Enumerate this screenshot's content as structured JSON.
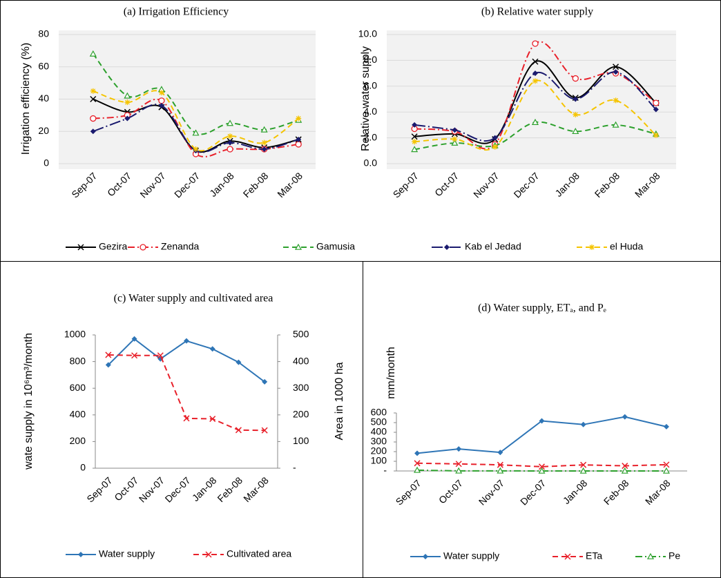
{
  "chart_data": [
    {
      "type": "line",
      "title": "(a)  Irrigation Efficiency",
      "y_label": "Irrigation efficiency (%)",
      "categories": [
        "Sep-07",
        "Oct-07",
        "Nov-07",
        "Dec-07",
        "Jan-08",
        "Feb-08",
        "Mar-08"
      ],
      "ylim": [
        0,
        80
      ],
      "yticks": [
        0,
        20,
        40,
        60,
        80
      ],
      "grid": true,
      "smooth": true,
      "series": [
        {
          "name": "Gezira",
          "color": "#000000",
          "marker": "x",
          "linestyle": "solid",
          "values": [
            40,
            32,
            35,
            8,
            14,
            10,
            15
          ]
        },
        {
          "name": "Zenanda",
          "color": "#e8202a",
          "marker": "o",
          "linestyle": "dashdot",
          "values": [
            28,
            30,
            39,
            6,
            9,
            9,
            12
          ]
        },
        {
          "name": "Gamusia",
          "color": "#2ca02c",
          "marker": "^",
          "linestyle": "dashed",
          "values": [
            68,
            42,
            46,
            19,
            25,
            21,
            27
          ]
        },
        {
          "name": "Kab el Jedad",
          "color": "#1a1a6e",
          "marker": "D",
          "linestyle": "longdashdot",
          "values": [
            20,
            28,
            36,
            8,
            13,
            9,
            15
          ]
        },
        {
          "name": "el Huda",
          "color": "#f5c400",
          "marker": "*",
          "linestyle": "dashed",
          "values": [
            45,
            38,
            44,
            9,
            17,
            13,
            28
          ]
        }
      ]
    },
    {
      "type": "line",
      "title": "(b)  Relative water supply",
      "y_label": "Relative water supply",
      "categories": [
        "Sep-07",
        "Oct-07",
        "Nov-07",
        "Dec-07",
        "Jan-08",
        "Feb-08",
        "Mar-08"
      ],
      "ylim": [
        0,
        10
      ],
      "yticks": [
        {
          "value": 0,
          "label": "0.0"
        },
        {
          "value": 2,
          "label": "2.0"
        },
        {
          "value": 4,
          "label": "4.0"
        },
        {
          "value": 6,
          "label": "6.0"
        },
        {
          "value": 8,
          "label": "8.0"
        },
        {
          "value": 10,
          "label": "10.0"
        }
      ],
      "grid": true,
      "smooth": true,
      "series": [
        {
          "color": "#000000",
          "marker": "x",
          "linestyle": "solid",
          "values": [
            2.1,
            2.3,
            1.9,
            7.9,
            5.1,
            7.5,
            4.7
          ]
        },
        {
          "color": "#e8202a",
          "marker": "o",
          "linestyle": "dashdot",
          "values": [
            2.7,
            2.5,
            1.5,
            9.3,
            6.6,
            7.0,
            4.7
          ]
        },
        {
          "color": "#2ca02c",
          "marker": "^",
          "linestyle": "dashed",
          "values": [
            1.1,
            1.6,
            1.4,
            3.2,
            2.5,
            3.0,
            2.3
          ]
        },
        {
          "color": "#1a1a6e",
          "marker": "D",
          "linestyle": "longdashdot",
          "values": [
            3.0,
            2.6,
            2.0,
            7.0,
            5.0,
            7.1,
            4.2
          ]
        },
        {
          "color": "#f5c400",
          "marker": "*",
          "linestyle": "dashed",
          "values": [
            1.7,
            1.9,
            1.3,
            6.4,
            3.8,
            4.9,
            2.2
          ]
        }
      ]
    },
    {
      "type": "line",
      "title": "(c)  Water supply and cultivated area",
      "y_label": "wate supply in 10⁶m³/month",
      "y2_label": "Area in 1000 ha",
      "categories": [
        "Sep-07",
        "Oct-07",
        "Nov-07",
        "Dec-07",
        "Jan-08",
        "Feb-08",
        "Mar-08"
      ],
      "ylim": [
        0,
        1000
      ],
      "yticks": [
        0,
        200,
        400,
        600,
        800,
        1000
      ],
      "y2lim": [
        0,
        500
      ],
      "y2ticks": [
        {
          "value": 0,
          "label": "-"
        },
        100,
        200,
        300,
        400,
        500
      ],
      "grid": false,
      "smooth": false,
      "series": [
        {
          "name": "Water supply",
          "color": "#2e75b6",
          "marker": "D",
          "linestyle": "solid",
          "values": [
            775,
            970,
            820,
            955,
            895,
            795,
            648
          ]
        },
        {
          "name": "Cultivated area",
          "color": "#e8202a",
          "marker": "x",
          "linestyle": "dashed",
          "axis": "y2",
          "values": [
            425,
            423,
            423,
            187,
            185,
            143,
            142
          ]
        }
      ]
    },
    {
      "type": "line",
      "title": "(d)  Water supply, ETₐ, and Pₑ",
      "y_label": "mm/month",
      "categories": [
        "Sep-07",
        "Oct-07",
        "Nov-07",
        "Dec-07",
        "Jan-08",
        "Feb-08",
        "Mar-08"
      ],
      "ylim": [
        0,
        600
      ],
      "yticks": [
        {
          "value": 0,
          "label": "-"
        },
        100,
        200,
        300,
        400,
        500,
        600
      ],
      "grid": false,
      "smooth": false,
      "series": [
        {
          "name": "Water supply",
          "color": "#2e75b6",
          "marker": "D",
          "linestyle": "solid",
          "values": [
            183,
            228,
            192,
            518,
            480,
            560,
            458
          ]
        },
        {
          "name": "ETa",
          "color": "#e8202a",
          "marker": "x",
          "linestyle": "dashed",
          "values": [
            80,
            73,
            63,
            44,
            63,
            53,
            65
          ]
        },
        {
          "name": "Pe",
          "color": "#2ca02c",
          "marker": "^",
          "linestyle": "dashdot",
          "values": [
            8,
            1,
            1,
            0,
            0,
            0,
            0
          ]
        }
      ]
    }
  ]
}
